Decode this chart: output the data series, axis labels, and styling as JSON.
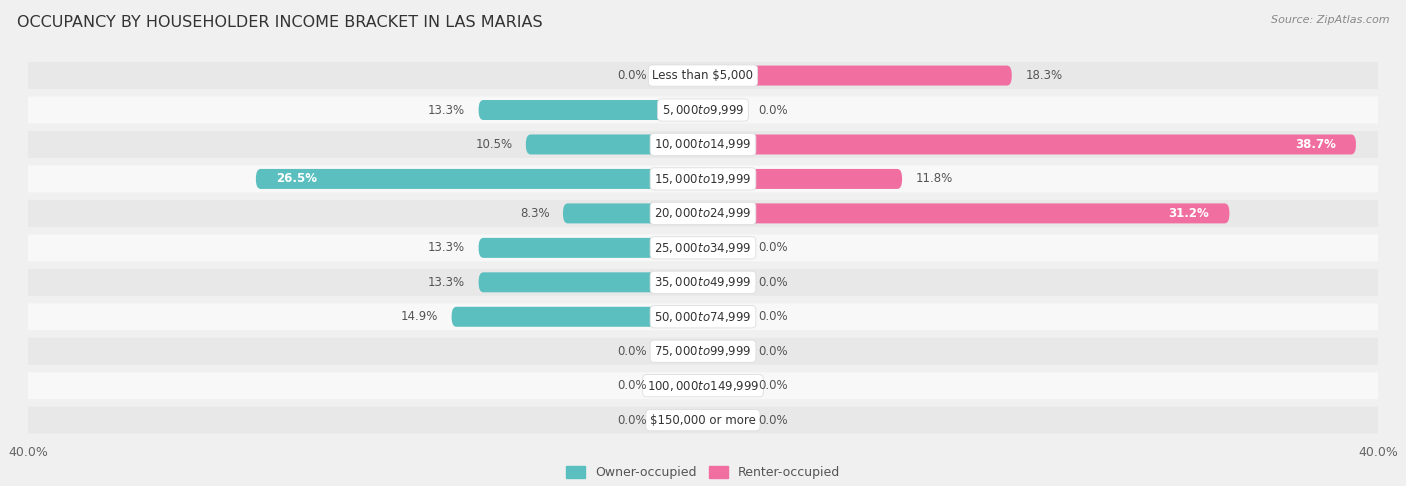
{
  "title": "OCCUPANCY BY HOUSEHOLDER INCOME BRACKET IN LAS MARIAS",
  "source": "Source: ZipAtlas.com",
  "categories": [
    "Less than $5,000",
    "$5,000 to $9,999",
    "$10,000 to $14,999",
    "$15,000 to $19,999",
    "$20,000 to $24,999",
    "$25,000 to $34,999",
    "$35,000 to $49,999",
    "$50,000 to $74,999",
    "$75,000 to $99,999",
    "$100,000 to $149,999",
    "$150,000 or more"
  ],
  "owner_values": [
    0.0,
    13.3,
    10.5,
    26.5,
    8.3,
    13.3,
    13.3,
    14.9,
    0.0,
    0.0,
    0.0
  ],
  "renter_values": [
    18.3,
    0.0,
    38.7,
    11.8,
    31.2,
    0.0,
    0.0,
    0.0,
    0.0,
    0.0,
    0.0
  ],
  "owner_color": "#5BBFBF",
  "renter_color": "#F06FA0",
  "owner_color_zero": "#9DD8D8",
  "renter_color_zero": "#F5AECE",
  "bar_height": 0.58,
  "xlim": 40.0,
  "bg_color": "#f0f0f0",
  "row_bg_odd": "#e8e8e8",
  "row_bg_even": "#f8f8f8",
  "title_fontsize": 11.5,
  "label_fontsize": 8.5,
  "category_fontsize": 8.5,
  "source_fontsize": 8.0,
  "axis_label_fontsize": 9.0,
  "zero_stub": 2.5
}
